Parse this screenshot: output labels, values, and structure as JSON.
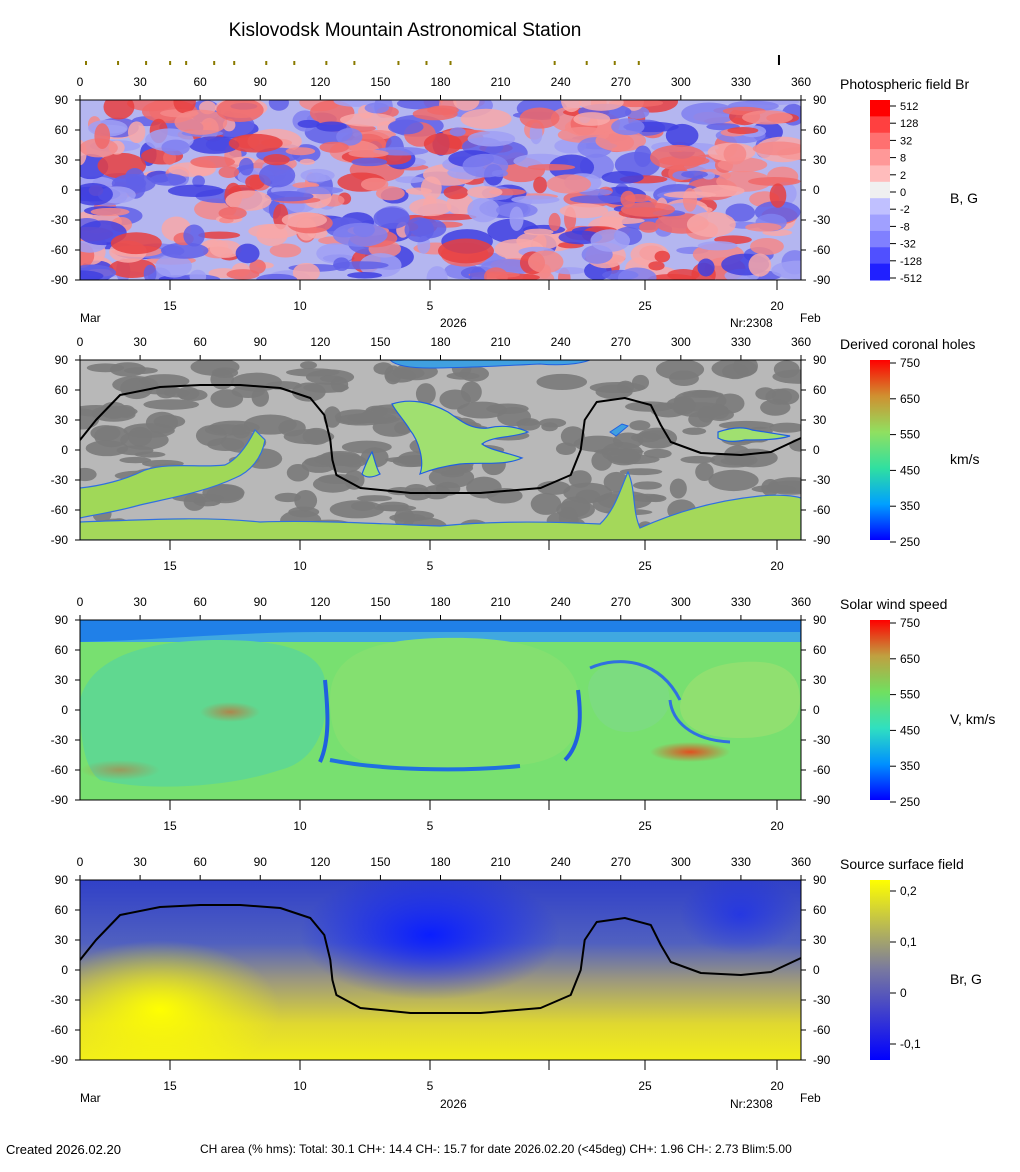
{
  "title": "Kislovodsk Mountain Astronomical Station",
  "footer": {
    "created": "Created  2026.02.20",
    "ch_area": "CH area (% hms): Total: 30.1 CH+: 14.4   CH-: 15.7 for date 2026.02.20 (<45deg) CH+: 1.96    CH-: 2.73 Blim:5.00"
  },
  "chart_data": [
    {
      "type": "heatmap",
      "id": "photospheric",
      "title": "Photospheric field Br",
      "unit_label": "B, G",
      "x_ticks": [
        "0",
        "30",
        "60",
        "90",
        "120",
        "150",
        "180",
        "210",
        "240",
        "270",
        "300",
        "330",
        "360"
      ],
      "y_ticks": [
        "90",
        "60",
        "30",
        "0",
        "-30",
        "-60",
        "-90"
      ],
      "xlim": [
        0,
        360
      ],
      "ylim": [
        -90,
        90
      ],
      "date_ticks": [
        "15",
        "10",
        "5",
        "",
        "25",
        "20"
      ],
      "month_left": "Mar",
      "month_right": "Feb",
      "year_label": "2026",
      "rotation_label": "Nr:2308",
      "colorbar_ticks": [
        "512",
        "128",
        "32",
        "8",
        "2",
        "0",
        "-2",
        "-8",
        "-32",
        "-128",
        "-512"
      ],
      "observation_marks_deg": [
        3,
        19,
        33,
        45,
        53,
        67,
        77,
        93,
        107,
        123,
        137,
        159,
        173,
        185,
        237,
        253,
        267,
        279
      ],
      "current_marker_deg": 349
    },
    {
      "type": "heatmap",
      "id": "coronal_holes",
      "title": "Derived coronal holes",
      "unit_label": "km/s",
      "x_ticks": [
        "0",
        "30",
        "60",
        "90",
        "120",
        "150",
        "180",
        "210",
        "240",
        "270",
        "300",
        "330",
        "360"
      ],
      "y_ticks": [
        "90",
        "60",
        "30",
        "0",
        "-30",
        "-60",
        "-90"
      ],
      "xlim": [
        0,
        360
      ],
      "ylim": [
        -90,
        90
      ],
      "date_ticks": [
        "15",
        "10",
        "5",
        "",
        "25",
        "20"
      ],
      "colorbar_ticks": [
        "750",
        "650",
        "550",
        "450",
        "350",
        "250"
      ],
      "neutral_line": true
    },
    {
      "type": "heatmap",
      "id": "solar_wind",
      "title": "Solar wind speed",
      "unit_label": "V, km/s",
      "x_ticks": [
        "0",
        "30",
        "60",
        "90",
        "120",
        "150",
        "180",
        "210",
        "240",
        "270",
        "300",
        "330",
        "360"
      ],
      "y_ticks": [
        "90",
        "60",
        "30",
        "0",
        "-30",
        "-60",
        "-90"
      ],
      "xlim": [
        0,
        360
      ],
      "ylim": [
        -90,
        90
      ],
      "date_ticks": [
        "15",
        "10",
        "5",
        "",
        "25",
        "20"
      ],
      "colorbar_ticks": [
        "750",
        "650",
        "550",
        "450",
        "350",
        "250"
      ]
    },
    {
      "type": "heatmap",
      "id": "source_surface",
      "title": "Source surface field",
      "unit_label": "Br, G",
      "x_ticks": [
        "0",
        "30",
        "60",
        "90",
        "120",
        "150",
        "180",
        "210",
        "240",
        "270",
        "300",
        "330",
        "360"
      ],
      "y_ticks": [
        "90",
        "60",
        "30",
        "0",
        "-30",
        "-60",
        "-90"
      ],
      "xlim": [
        0,
        360
      ],
      "ylim": [
        -90,
        90
      ],
      "date_ticks": [
        "15",
        "10",
        "5",
        "",
        "25",
        "20"
      ],
      "month_left": "Mar",
      "month_right": "Feb",
      "year_label": "2026",
      "rotation_label": "Nr:2308",
      "colorbar_ticks": [
        "0,2",
        "0,1",
        "0",
        "-0,1"
      ],
      "neutral_line": true,
      "neutral_line_points": [
        [
          0,
          10
        ],
        [
          8,
          30
        ],
        [
          20,
          55
        ],
        [
          40,
          63
        ],
        [
          60,
          65
        ],
        [
          80,
          65
        ],
        [
          100,
          62
        ],
        [
          115,
          52
        ],
        [
          122,
          35
        ],
        [
          125,
          10
        ],
        [
          126,
          -10
        ],
        [
          128,
          -25
        ],
        [
          140,
          -38
        ],
        [
          165,
          -43
        ],
        [
          200,
          -43
        ],
        [
          230,
          -38
        ],
        [
          245,
          -25
        ],
        [
          250,
          0
        ],
        [
          252,
          30
        ],
        [
          258,
          48
        ],
        [
          272,
          52
        ],
        [
          285,
          45
        ],
        [
          290,
          25
        ],
        [
          295,
          8
        ],
        [
          310,
          -3
        ],
        [
          330,
          -5
        ],
        [
          345,
          -2
        ],
        [
          360,
          12
        ]
      ]
    }
  ]
}
